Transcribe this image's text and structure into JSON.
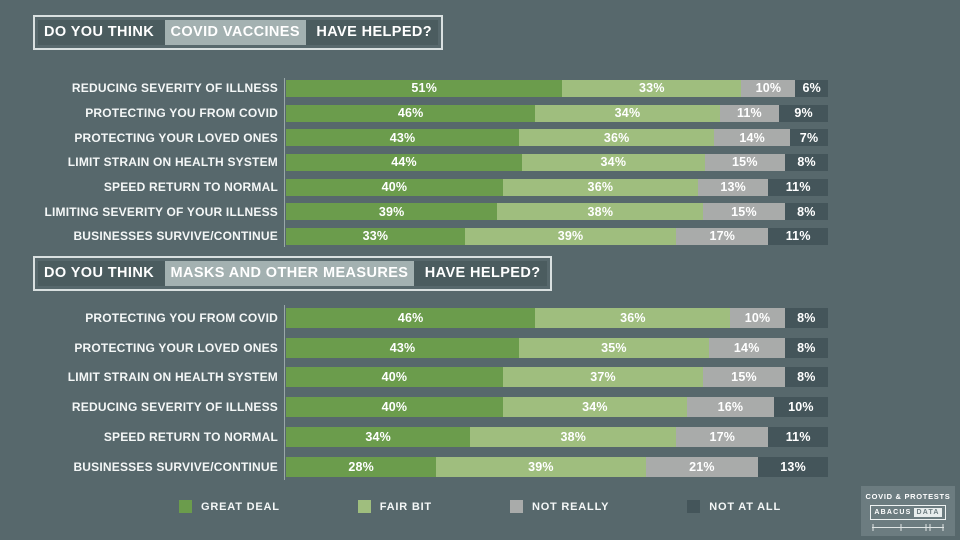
{
  "page": {
    "background": "#57686c"
  },
  "legend": [
    {
      "label": "GREAT DEAL",
      "color": "#6b9c4c"
    },
    {
      "label": "FAIR BIT",
      "color": "#9fbe7e"
    },
    {
      "label": "NOT REALLY",
      "color": "#a9abaa"
    },
    {
      "label": "NOT AT ALL",
      "color": "#44555a"
    }
  ],
  "badge": {
    "title": "COVID & PROTESTS",
    "brand_left": "ABACUS",
    "brand_right": "DATA"
  },
  "chart_data": [
    {
      "type": "bar",
      "stacked": true,
      "orientation": "horizontal",
      "title": "DO YOU THINK COVID VACCINES HAVE HELPED?",
      "title_parts": {
        "prefix": "DO YOU THINK ",
        "highlight": "COVID VACCINES",
        "suffix": " HAVE HELPED?"
      },
      "unit": "%",
      "xlim": [
        0,
        100
      ],
      "grid": false,
      "legend_position": "bottom-shared",
      "series_names": [
        "GREAT DEAL",
        "FAIR BIT",
        "NOT REALLY",
        "NOT AT ALL"
      ],
      "categories": [
        "REDUCING SEVERITY OF ILLNESS",
        "PROTECTING YOU FROM COVID",
        "PROTECTING YOUR LOVED ONES",
        "LIMIT STRAIN ON HEALTH SYSTEM",
        "SPEED RETURN TO NORMAL",
        "LIMITING SEVERITY OF YOUR ILLNESS",
        "BUSINESSES SURVIVE/CONTINUE"
      ],
      "rows": [
        [
          51,
          33,
          10,
          6
        ],
        [
          46,
          34,
          11,
          9
        ],
        [
          43,
          36,
          14,
          7
        ],
        [
          44,
          34,
          15,
          8
        ],
        [
          40,
          36,
          13,
          11
        ],
        [
          39,
          38,
          15,
          8
        ],
        [
          33,
          39,
          17,
          11
        ]
      ]
    },
    {
      "type": "bar",
      "stacked": true,
      "orientation": "horizontal",
      "title": "DO YOU THINK MASKS AND OTHER MEASURES HAVE HELPED?",
      "title_parts": {
        "prefix": "DO YOU THINK ",
        "highlight": "MASKS AND OTHER MEASURES",
        "suffix": " HAVE HELPED?"
      },
      "unit": "%",
      "xlim": [
        0,
        100
      ],
      "grid": false,
      "legend_position": "bottom-shared",
      "series_names": [
        "GREAT DEAL",
        "FAIR BIT",
        "NOT REALLY",
        "NOT AT ALL"
      ],
      "categories": [
        "PROTECTING YOU FROM COVID",
        "PROTECTING YOUR LOVED ONES",
        "LIMIT STRAIN ON HEALTH SYSTEM",
        "REDUCING SEVERITY OF ILLNESS",
        "SPEED RETURN TO NORMAL",
        "BUSINESSES SURVIVE/CONTINUE"
      ],
      "rows": [
        [
          46,
          36,
          10,
          8
        ],
        [
          43,
          35,
          14,
          8
        ],
        [
          40,
          37,
          15,
          8
        ],
        [
          40,
          34,
          16,
          10
        ],
        [
          34,
          38,
          17,
          11
        ],
        [
          28,
          39,
          21,
          13
        ]
      ]
    }
  ]
}
